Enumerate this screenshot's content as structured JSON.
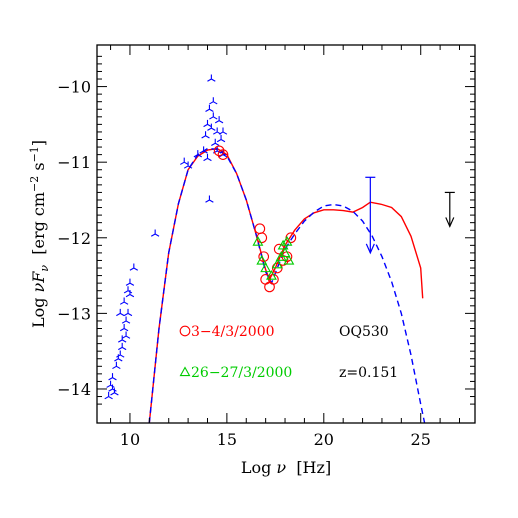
{
  "chart_data": {
    "type": "scatter",
    "xlabel_parts": {
      "prefix": "Log ",
      "symbol": "ν",
      "units": "  [Hz]"
    },
    "ylabel_parts": {
      "prefix": "Log ",
      "symbol": "νF",
      "sub": "ν",
      "units": "  [erg cm",
      "exp1": "−2",
      "mid": " s",
      "exp2": "−1",
      "end": "]"
    },
    "xlim": [
      8.3,
      27.8
    ],
    "ylim": [
      -14.45,
      -9.45
    ],
    "x_ticks": [
      10,
      15,
      20,
      25
    ],
    "y_ticks": [
      -10,
      -11,
      -12,
      -13,
      -14
    ],
    "x_tick_labels": [
      "10",
      "15",
      "20",
      "25"
    ],
    "y_tick_labels": [
      "−10",
      "−11",
      "−12",
      "−13",
      "−14"
    ],
    "annotations": [
      {
        "text": "3−4/3/2000",
        "color": "#ff0000",
        "marker": "circle"
      },
      {
        "text": "26−27/3/2000",
        "color": "#00cc00",
        "marker": "triangle"
      },
      {
        "text": "OQ530",
        "color": "#000000"
      },
      {
        "text": "z=0.151",
        "color": "#000000"
      }
    ],
    "colors": {
      "archival": "#0000ff",
      "epoch1": "#ff0000",
      "epoch2": "#00cc00",
      "upper_limit": "#000000"
    },
    "series": [
      {
        "marker": "tri-star",
        "color": "#0000ff",
        "points": [
          [
            8.9,
            -14.1
          ],
          [
            9.0,
            -13.95
          ],
          [
            9.1,
            -14.0
          ],
          [
            9.2,
            -14.05
          ],
          [
            9.1,
            -13.85
          ],
          [
            9.3,
            -13.7
          ],
          [
            9.4,
            -13.6
          ],
          [
            9.5,
            -13.55
          ],
          [
            9.6,
            -13.35
          ],
          [
            9.7,
            -13.2
          ],
          [
            9.8,
            -13.1
          ],
          [
            9.9,
            -13.0
          ],
          [
            9.6,
            -13.45
          ],
          [
            9.8,
            -13.3
          ],
          [
            9.5,
            -13.0
          ],
          [
            9.7,
            -12.85
          ],
          [
            9.9,
            -12.7
          ],
          [
            10.0,
            -12.6
          ],
          [
            10.2,
            -12.4
          ],
          [
            10.0,
            -12.75
          ],
          [
            11.3,
            -11.95
          ],
          [
            12.8,
            -11.0
          ],
          [
            13.0,
            -11.05
          ],
          [
            13.5,
            -10.9
          ],
          [
            13.8,
            -10.85
          ],
          [
            14.0,
            -10.95
          ],
          [
            14.1,
            -11.5
          ],
          [
            13.9,
            -10.65
          ],
          [
            14.0,
            -10.5
          ],
          [
            14.1,
            -10.3
          ],
          [
            14.2,
            -10.55
          ],
          [
            14.3,
            -10.2
          ],
          [
            14.4,
            -10.75
          ],
          [
            14.5,
            -10.6
          ],
          [
            14.6,
            -10.45
          ],
          [
            14.7,
            -10.7
          ],
          [
            14.8,
            -10.6
          ],
          [
            14.3,
            -10.4
          ],
          [
            14.2,
            -9.9
          ],
          [
            14.5,
            -10.85
          ],
          [
            14.8,
            -10.9
          ]
        ]
      },
      {
        "marker": "circle",
        "color": "#ff0000",
        "points": [
          [
            14.6,
            -10.85
          ],
          [
            14.8,
            -10.9
          ],
          [
            16.7,
            -11.88
          ],
          [
            16.8,
            -12.0
          ],
          [
            16.9,
            -12.25
          ],
          [
            17.0,
            -12.55
          ],
          [
            17.2,
            -12.65
          ],
          [
            17.4,
            -12.55
          ],
          [
            17.6,
            -12.4
          ],
          [
            17.7,
            -12.15
          ],
          [
            17.9,
            -12.3
          ],
          [
            18.1,
            -12.25
          ],
          [
            18.3,
            -12.0
          ]
        ]
      },
      {
        "marker": "triangle",
        "color": "#00cc00",
        "points": [
          [
            16.6,
            -12.05
          ],
          [
            16.8,
            -12.3
          ],
          [
            17.0,
            -12.4
          ],
          [
            17.3,
            -12.5
          ],
          [
            17.6,
            -12.35
          ],
          [
            17.8,
            -12.25
          ],
          [
            17.9,
            -12.1
          ],
          [
            18.0,
            -12.2
          ],
          [
            18.2,
            -12.3
          ],
          [
            18.1,
            -12.05
          ]
        ]
      }
    ],
    "upper_limits": [
      {
        "x": 22.4,
        "y_top": -11.2,
        "y_bottom": -12.2,
        "color": "#0000ff"
      },
      {
        "x": 26.5,
        "y_top": -11.4,
        "y_bottom": -11.85,
        "color": "#000000"
      }
    ],
    "models": [
      {
        "style": "solid",
        "color": "#ff0000",
        "points": [
          [
            11.0,
            -14.45
          ],
          [
            11.5,
            -13.2
          ],
          [
            12.0,
            -12.2
          ],
          [
            12.5,
            -11.55
          ],
          [
            13.0,
            -11.1
          ],
          [
            13.5,
            -10.92
          ],
          [
            14.0,
            -10.84
          ],
          [
            14.5,
            -10.82
          ],
          [
            15.0,
            -10.9
          ],
          [
            15.5,
            -11.15
          ],
          [
            16.0,
            -11.5
          ],
          [
            16.5,
            -11.95
          ],
          [
            17.0,
            -12.42
          ],
          [
            17.2,
            -12.55
          ],
          [
            17.5,
            -12.4
          ],
          [
            18.0,
            -12.1
          ],
          [
            18.5,
            -11.9
          ],
          [
            19.0,
            -11.75
          ],
          [
            19.5,
            -11.67
          ],
          [
            20.0,
            -11.63
          ],
          [
            20.5,
            -11.63
          ],
          [
            21.0,
            -11.64
          ],
          [
            21.5,
            -11.66
          ],
          [
            22.0,
            -11.6
          ],
          [
            22.4,
            -11.53
          ],
          [
            23.0,
            -11.56
          ],
          [
            23.5,
            -11.6
          ],
          [
            24.0,
            -11.72
          ],
          [
            24.5,
            -11.98
          ],
          [
            25.0,
            -12.4
          ],
          [
            25.1,
            -12.8
          ]
        ]
      },
      {
        "style": "dashed",
        "color": "#0000ff",
        "points": [
          [
            11.0,
            -14.45
          ],
          [
            11.5,
            -13.2
          ],
          [
            12.0,
            -12.2
          ],
          [
            12.5,
            -11.55
          ],
          [
            13.0,
            -11.1
          ],
          [
            13.5,
            -10.9
          ],
          [
            14.0,
            -10.82
          ],
          [
            14.5,
            -10.83
          ],
          [
            15.0,
            -10.92
          ],
          [
            15.5,
            -11.15
          ],
          [
            16.0,
            -11.5
          ],
          [
            16.5,
            -11.95
          ],
          [
            17.0,
            -12.45
          ],
          [
            17.3,
            -12.6
          ],
          [
            17.6,
            -12.4
          ],
          [
            18.0,
            -12.15
          ],
          [
            18.5,
            -11.95
          ],
          [
            19.0,
            -11.78
          ],
          [
            19.5,
            -11.66
          ],
          [
            20.0,
            -11.58
          ],
          [
            20.5,
            -11.56
          ],
          [
            21.0,
            -11.58
          ],
          [
            21.5,
            -11.65
          ],
          [
            22.0,
            -11.78
          ],
          [
            22.5,
            -11.98
          ],
          [
            23.0,
            -12.25
          ],
          [
            23.5,
            -12.58
          ],
          [
            24.0,
            -13.0
          ],
          [
            24.5,
            -13.55
          ],
          [
            25.0,
            -14.2
          ],
          [
            25.2,
            -14.45
          ]
        ]
      }
    ]
  }
}
